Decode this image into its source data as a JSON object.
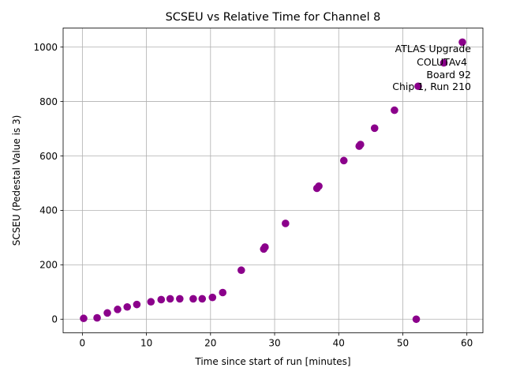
{
  "chart_data": {
    "type": "scatter",
    "title": "SCSEU vs Relative Time for Channel 8",
    "xlabel": "Time since start of run [minutes]",
    "ylabel": "SCSEU (Pedestal Value is 3)",
    "xlim": [
      -3.0,
      62.5
    ],
    "ylim": [
      -50,
      1070
    ],
    "xticks": [
      0,
      10,
      20,
      30,
      40,
      50,
      60
    ],
    "xtick_labels": [
      "0",
      "10",
      "20",
      "30",
      "40",
      "50",
      "60"
    ],
    "yticks": [
      0,
      200,
      400,
      600,
      800,
      1000
    ],
    "ytick_labels": [
      "0",
      "200",
      "400",
      "600",
      "800",
      "1000"
    ],
    "grid": true,
    "marker_color": "#8b008b",
    "annotation": [
      "ATLAS Upgrade",
      "COLUTAv4",
      "Board 92",
      "Chip 1, Run 210"
    ],
    "series": [
      {
        "name": "Channel 8",
        "x": [
          0.2,
          2.3,
          3.9,
          5.5,
          7.0,
          8.5,
          10.7,
          12.3,
          13.7,
          15.2,
          17.3,
          18.7,
          20.3,
          21.9,
          24.8,
          28.3,
          28.5,
          31.7,
          36.6,
          36.9,
          40.8,
          43.2,
          43.4,
          45.6,
          48.7,
          52.1,
          52.4,
          56.4,
          59.3
        ],
        "y": [
          3,
          5,
          23,
          36,
          45,
          54,
          64,
          72,
          75,
          75,
          75,
          75,
          80,
          98,
          180,
          258,
          265,
          352,
          481,
          489,
          583,
          636,
          642,
          702,
          768,
          0,
          856,
          942,
          1018
        ]
      }
    ]
  }
}
